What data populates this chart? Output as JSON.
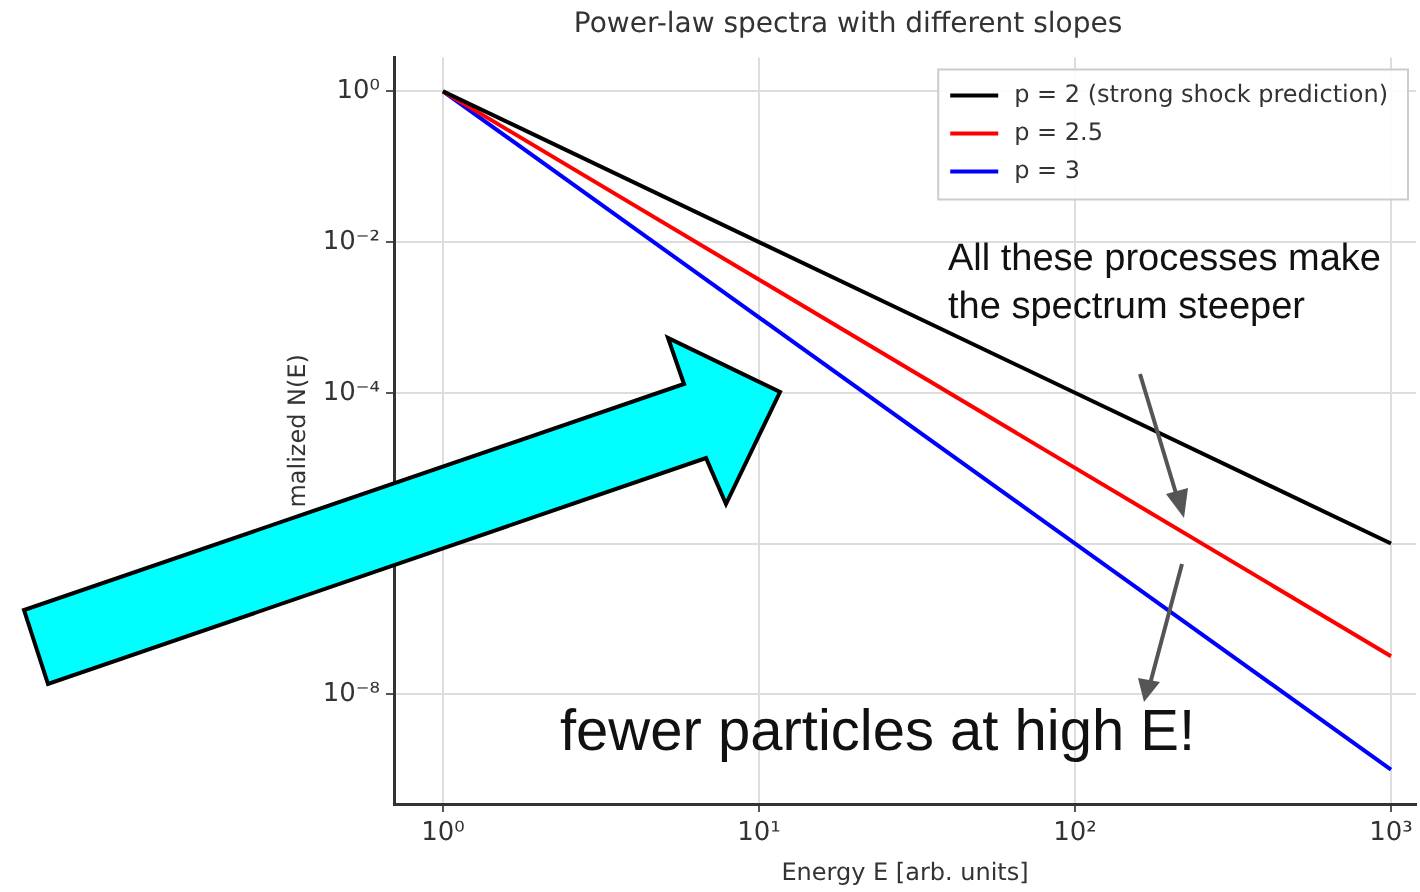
{
  "chart_data": {
    "type": "line",
    "title": "Power-law spectra with different slopes",
    "xlabel": "Energy E [arb. units]",
    "ylabel": "malized N(E)",
    "x": [
      1,
      1000
    ],
    "series": [
      {
        "name": "p = 2 (strong shock prediction)",
        "color": "#000000",
        "values": [
          1,
          1e-06
        ]
      },
      {
        "name": "p = 2.5",
        "color": "#ff0000",
        "values": [
          1,
          3.2e-08
        ]
      },
      {
        "name": "p = 3",
        "color": "#0000ff",
        "values": [
          1,
          1e-09
        ]
      }
    ],
    "log": "xy",
    "xlim": [
      0.7,
      1200
    ],
    "ylim": [
      3.5e-10,
      2.8
    ],
    "xticks": [
      {
        "value": 1,
        "label": "10⁰"
      },
      {
        "value": 10,
        "label": "10¹"
      },
      {
        "value": 100,
        "label": "10²"
      },
      {
        "value": 1000,
        "label": "10³"
      }
    ],
    "yticks": [
      {
        "value": 1,
        "label": "10⁰"
      },
      {
        "value": 0.01,
        "label": "10⁻²"
      },
      {
        "value": 0.0001,
        "label": "10⁻⁴"
      },
      {
        "value": 1e-06,
        "label": null
      },
      {
        "value": 1e-08,
        "label": "10⁻⁸"
      }
    ],
    "grid": true,
    "legend": "top right",
    "marker": "none",
    "line_style": "solid",
    "annotations": [
      "All these processes make the spectrum steeper",
      "fewer particles at high E!"
    ]
  }
}
